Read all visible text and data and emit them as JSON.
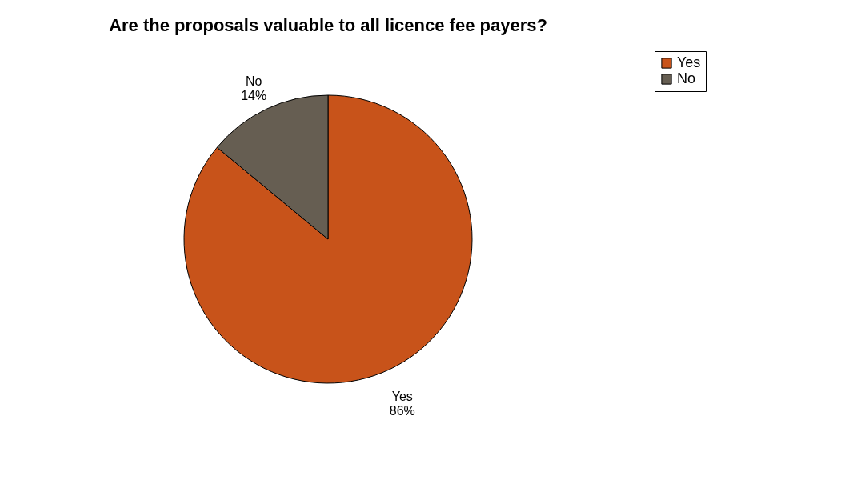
{
  "chart_data": {
    "type": "pie",
    "title": "Are the proposals valuable to all licence fee payers?",
    "categories": [
      "Yes",
      "No"
    ],
    "values": [
      86,
      14
    ],
    "colors": [
      "#c8531a",
      "#665e52"
    ],
    "value_labels": [
      "86%",
      "14%"
    ],
    "legend": "right"
  }
}
